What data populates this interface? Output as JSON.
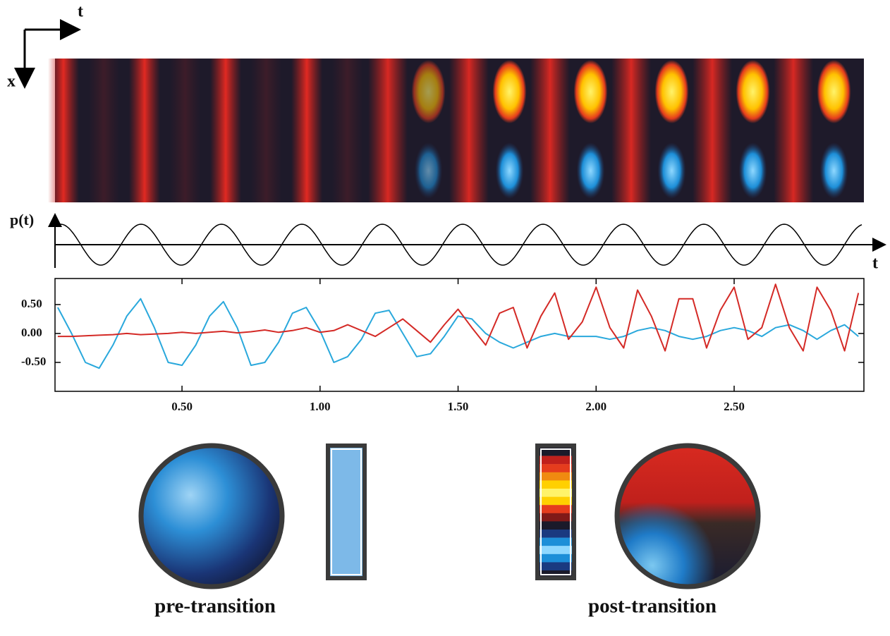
{
  "axis_labels": {
    "top_t": "t",
    "top_x": "x",
    "drive": "p(t)",
    "drive_t": "t"
  },
  "captions": [
    "pre-transition",
    "post-transition"
  ],
  "chart_data": {
    "type": "line",
    "x": [
      0.05,
      0.1,
      0.15,
      0.2,
      0.25,
      0.3,
      0.35,
      0.4,
      0.45,
      0.5,
      0.55,
      0.6,
      0.65,
      0.7,
      0.75,
      0.8,
      0.85,
      0.9,
      0.95,
      1.0,
      1.05,
      1.1,
      1.15,
      1.2,
      1.25,
      1.3,
      1.35,
      1.4,
      1.45,
      1.5,
      1.55,
      1.6,
      1.65,
      1.7,
      1.75,
      1.8,
      1.85,
      1.9,
      1.95,
      2.0,
      2.05,
      2.1,
      2.15,
      2.2,
      2.25,
      2.3,
      2.35,
      2.4,
      2.45,
      2.5,
      2.55,
      2.6,
      2.65,
      2.7,
      2.75,
      2.8,
      2.85,
      2.9,
      2.95
    ],
    "series": [
      {
        "color": "#29a8dc",
        "values": [
          0.45,
          0.0,
          -0.5,
          -0.6,
          -0.2,
          0.3,
          0.6,
          0.1,
          -0.5,
          -0.55,
          -0.2,
          0.3,
          0.55,
          0.1,
          -0.55,
          -0.5,
          -0.15,
          0.35,
          0.45,
          0.05,
          -0.5,
          -0.4,
          -0.1,
          0.35,
          0.4,
          0.0,
          -0.4,
          -0.35,
          -0.05,
          0.3,
          0.25,
          0.0,
          -0.15,
          -0.25,
          -0.15,
          -0.05,
          0.0,
          -0.05,
          -0.05,
          -0.05,
          -0.1,
          -0.05,
          0.05,
          0.1,
          0.05,
          -0.05,
          -0.1,
          -0.05,
          0.05,
          0.1,
          0.05,
          -0.05,
          0.1,
          0.15,
          0.05,
          -0.1,
          0.05,
          0.15,
          -0.05
        ]
      },
      {
        "color": "#d42a26",
        "values": [
          -0.05,
          -0.05,
          -0.04,
          -0.03,
          -0.02,
          0.0,
          -0.02,
          -0.01,
          0.0,
          0.02,
          0.0,
          0.02,
          0.04,
          0.01,
          0.03,
          0.06,
          0.02,
          0.05,
          0.1,
          0.02,
          0.05,
          0.15,
          0.05,
          -0.05,
          0.1,
          0.25,
          0.05,
          -0.15,
          0.15,
          0.42,
          0.1,
          -0.2,
          0.35,
          0.45,
          -0.25,
          0.3,
          0.7,
          -0.1,
          0.2,
          0.8,
          0.1,
          -0.25,
          0.75,
          0.3,
          -0.3,
          0.6,
          0.6,
          -0.25,
          0.4,
          0.8,
          -0.1,
          0.1,
          0.85,
          0.1,
          -0.3,
          0.8,
          0.4,
          -0.3,
          0.7
        ]
      }
    ],
    "xlim": [
      0.04,
      2.97
    ],
    "ylim": [
      -1.0,
      0.95
    ],
    "xticks": [
      {
        "value": 0.5,
        "label": "0.50"
      },
      {
        "value": 1.0,
        "label": "1.00"
      },
      {
        "value": 1.5,
        "label": "1.50"
      },
      {
        "value": 2.0,
        "label": "2.00"
      },
      {
        "value": 2.5,
        "label": "2.50"
      }
    ],
    "yticks": [
      {
        "value": 0.5,
        "label": "0.50"
      },
      {
        "value": 0.0,
        "label": "0.00"
      },
      {
        "value": -0.5,
        "label": "-0.50"
      }
    ]
  }
}
